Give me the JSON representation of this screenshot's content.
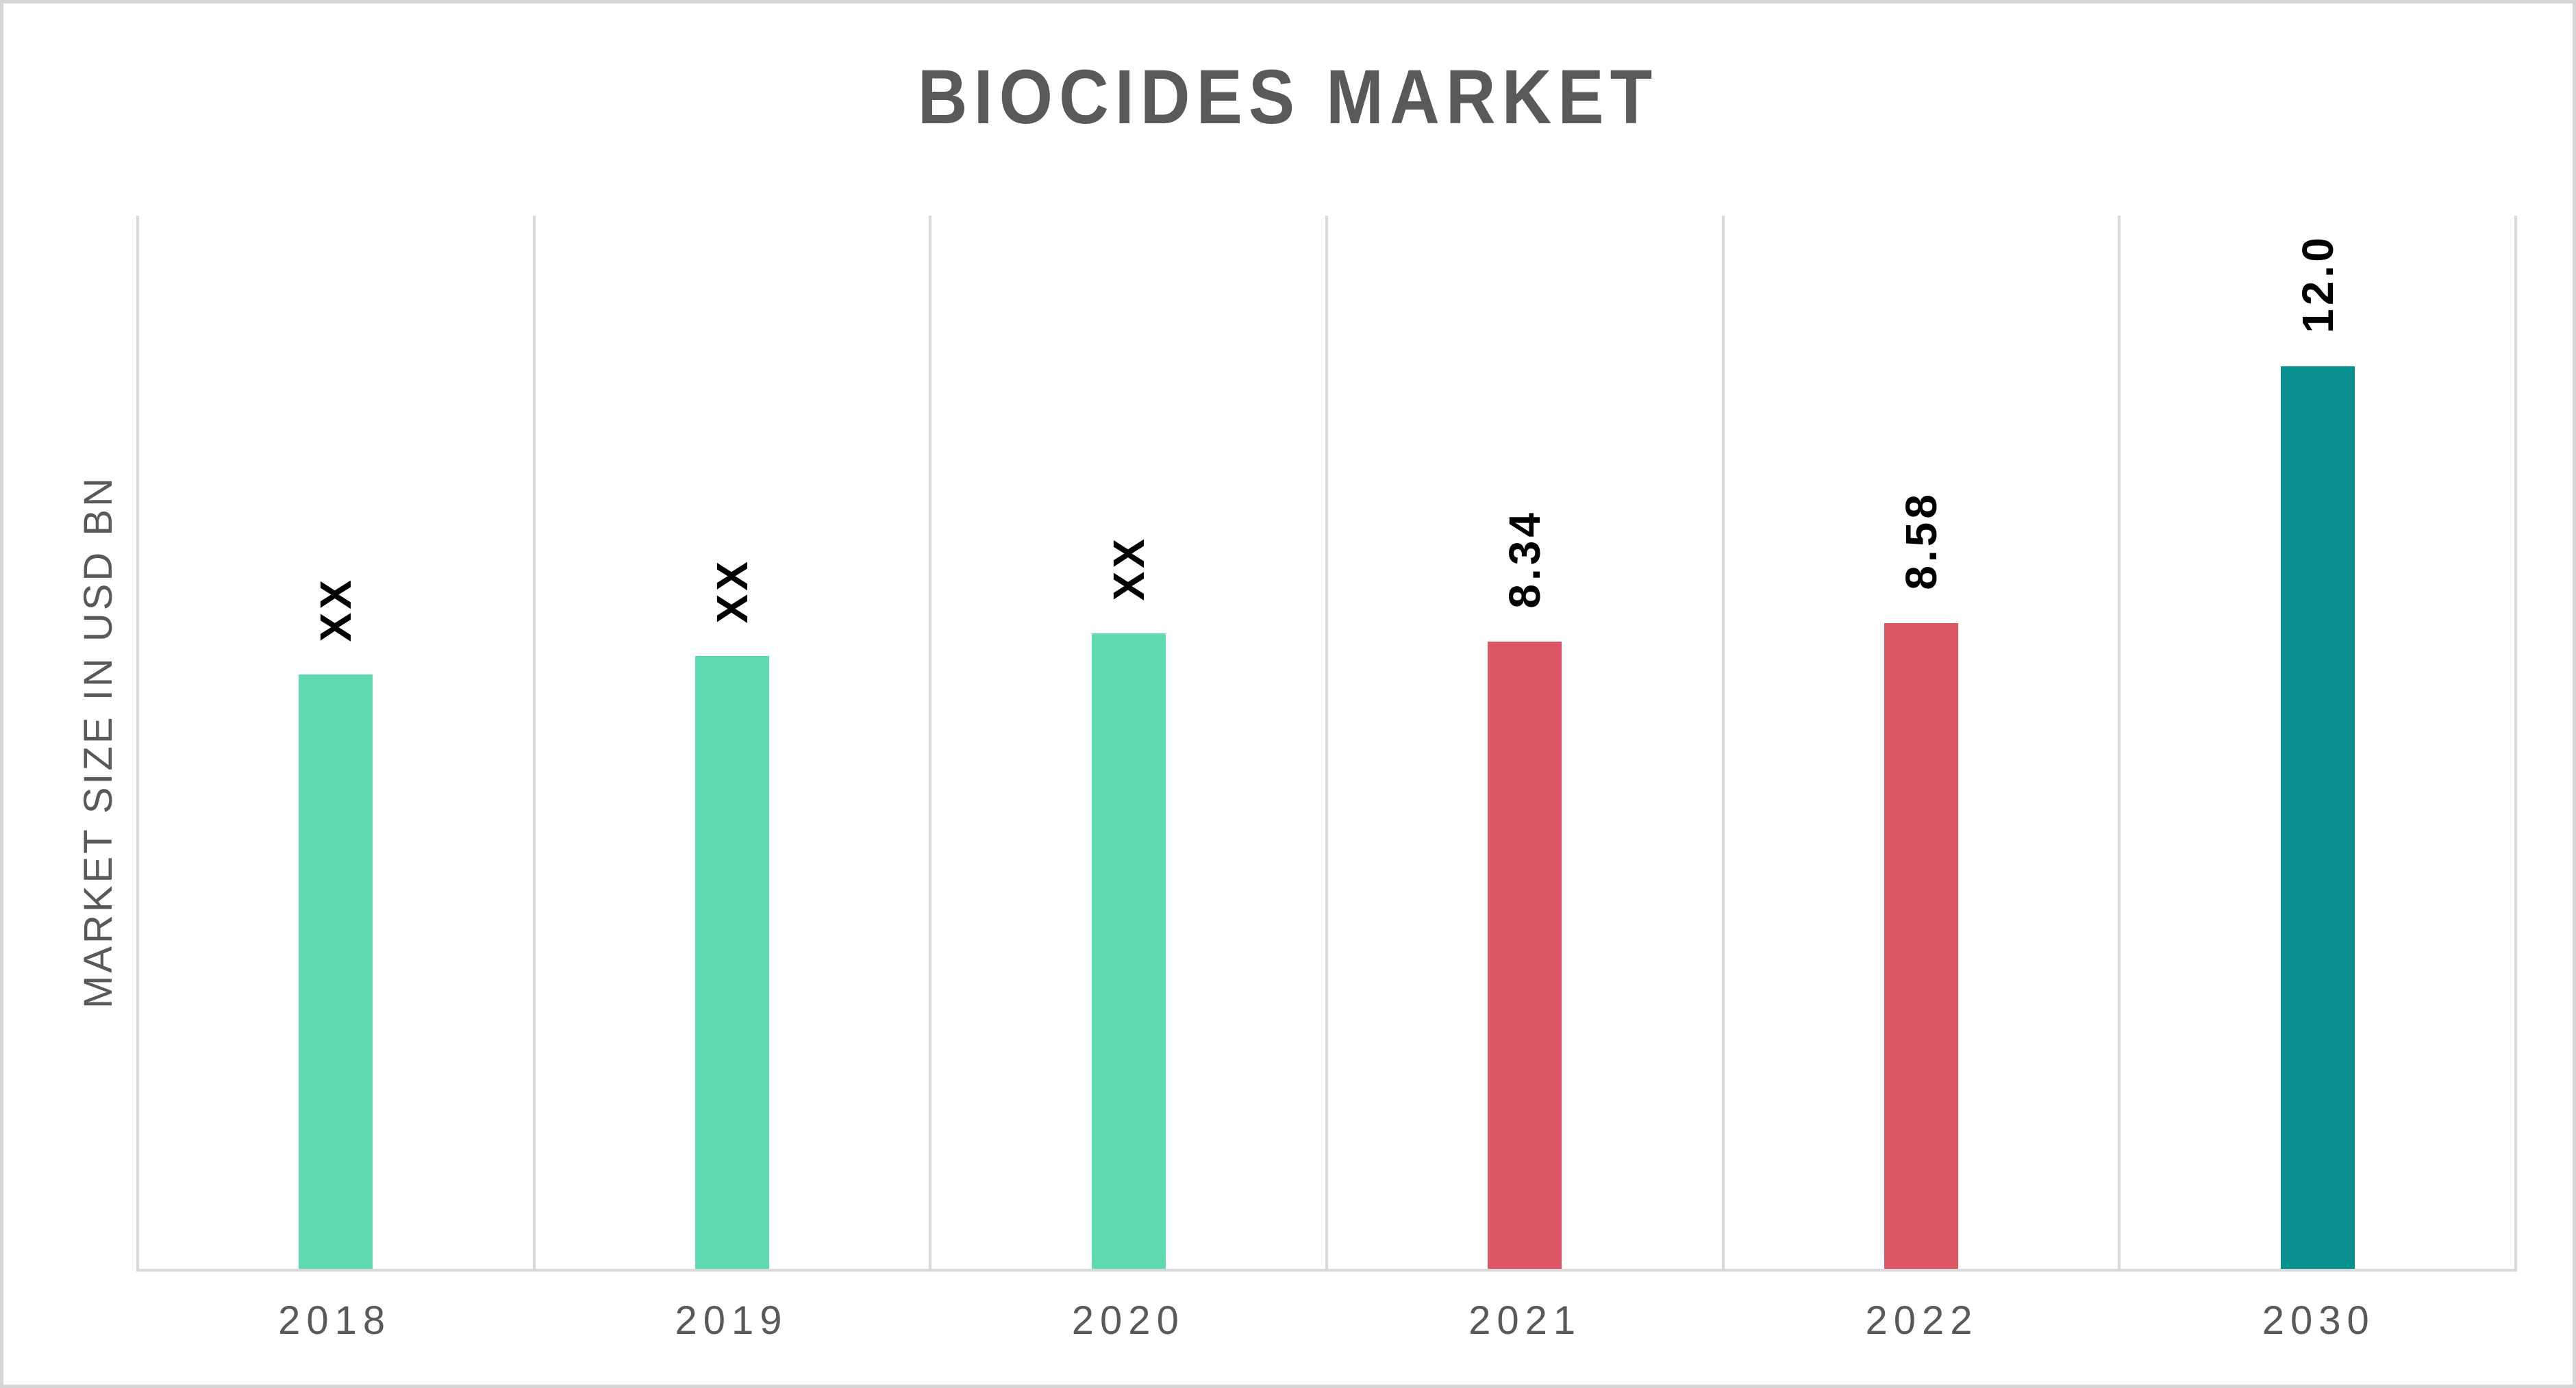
{
  "title": {
    "text": "BIOCIDES MARKET",
    "color": "#595959"
  },
  "y_axis": {
    "label": "MARKET SIZE IN USD BN",
    "color": "#595959"
  },
  "x_axis": {
    "tick_labels": [
      "2018",
      "2019",
      "2020",
      "2021",
      "2022",
      "2030"
    ],
    "color": "#595959"
  },
  "colors": {
    "historical_bar": "#5fd9b1",
    "recent_bar": "#dc5665",
    "forecast_bar": "#088f90",
    "grid_and_axis": "#d9d9d9",
    "axis_text": "#595959",
    "bar_label_text": "#000000",
    "outer_border": "#d6d6d6",
    "background": "#ffffff"
  },
  "chart_data": {
    "type": "bar",
    "title": "BIOCIDES MARKET",
    "xlabel": "",
    "ylabel": "MARKET SIZE IN USD BN",
    "categories": [
      "2018",
      "2019",
      "2020",
      "2021",
      "2022",
      "2030"
    ],
    "values": [
      null,
      null,
      null,
      8.34,
      8.58,
      12.0
    ],
    "bar_labels": [
      "XX",
      "XX",
      "XX",
      "8.34",
      "8.58",
      "12.0"
    ],
    "render_values": [
      7.9,
      8.15,
      8.45,
      8.34,
      8.58,
      12.0
    ],
    "bar_colors": [
      "#5fd9b1",
      "#5fd9b1",
      "#5fd9b1",
      "#dc5665",
      "#dc5665",
      "#088f90"
    ],
    "bar_label_rotation_deg": -90,
    "ylim": [
      0,
      14
    ],
    "y_tick_labels_shown": false,
    "grid": "vertical category separators only",
    "gridline_color": "#d9d9d9",
    "legend_position": "none"
  }
}
